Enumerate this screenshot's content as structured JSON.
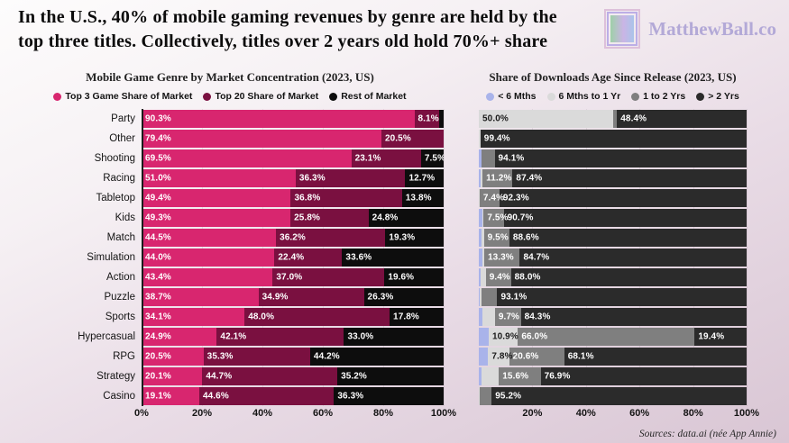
{
  "header": {
    "title_line1": "In the U.S., 40% of mobile gaming revenues by genre are held by the",
    "title_line2": "top three titles. Collectively, titles over 2 years old hold 70%+ share",
    "logo_text": "MatthewBall.co"
  },
  "footer": {
    "source": "Sources: data.ai (née App Annie)"
  },
  "chart_data": [
    {
      "type": "bar",
      "orientation": "horizontal",
      "stacked": true,
      "title": "Mobile Game Genre by Market Concentration (2023, US)",
      "legend_position": "top",
      "show_category_labels": true,
      "xlim": [
        0,
        100
      ],
      "x_ticks": [
        "0%",
        "20%",
        "40%",
        "60%",
        "80%",
        "100%"
      ],
      "categories": [
        "Party",
        "Other",
        "Shooting",
        "Racing",
        "Tabletop",
        "Kids",
        "Match",
        "Simulation",
        "Action",
        "Puzzle",
        "Sports",
        "Hypercasual",
        "RPG",
        "Strategy",
        "Casino"
      ],
      "series": [
        {
          "name": "Top 3 Game Share of Market",
          "color": "#d8266f",
          "label_color": "#ffffff",
          "values": [
            90.3,
            79.4,
            69.5,
            51.0,
            49.4,
            49.3,
            44.5,
            44.0,
            43.4,
            38.7,
            34.1,
            24.9,
            20.5,
            20.1,
            19.1
          ]
        },
        {
          "name": "Top 20 Share of Market",
          "color": "#7a1040",
          "label_color": "#ffffff",
          "values": [
            8.1,
            20.5,
            23.1,
            36.3,
            36.8,
            25.8,
            36.2,
            22.4,
            37.0,
            34.9,
            48.0,
            42.1,
            35.3,
            44.7,
            44.6
          ]
        },
        {
          "name": "Rest of Market",
          "color": "#0d0d0d",
          "label_color": "#ffffff",
          "values": [
            1.6,
            0.1,
            7.5,
            12.7,
            13.8,
            24.8,
            19.3,
            33.6,
            19.6,
            26.3,
            17.8,
            33.0,
            44.2,
            35.2,
            36.3
          ]
        }
      ]
    },
    {
      "type": "bar",
      "orientation": "horizontal",
      "stacked": true,
      "title": "Share of Downloads Age Since Release (2023, US)",
      "legend_position": "top",
      "show_category_labels": false,
      "xlim": [
        0,
        100
      ],
      "x_ticks": [
        "20%",
        "40%",
        "60%",
        "80%",
        "100%"
      ],
      "categories": [
        "Party",
        "Other",
        "Shooting",
        "Racing",
        "Tabletop",
        "Kids",
        "Match",
        "Simulation",
        "Action",
        "Puzzle",
        "Sports",
        "Hypercasual",
        "RPG",
        "Strategy",
        "Casino"
      ],
      "series": [
        {
          "name": "< 6 Mths",
          "color": "#a9b3ea",
          "label_color": "#1a1a1a",
          "values": [
            0,
            0,
            1.0,
            0.8,
            0,
            1.3,
            0.9,
            1.3,
            0.6,
            0.5,
            1.4,
            3.7,
            3.5,
            1.1,
            0
          ]
        },
        {
          "name": "6 Mths to 1 Yr",
          "color": "#dadada",
          "label_color": "#1a1a1a",
          "values": [
            50.0,
            0.6,
            0,
            0.6,
            0.3,
            0.5,
            1.0,
            0.7,
            2.0,
            0.6,
            4.6,
            10.9,
            7.8,
            6.4,
            0.3
          ]
        },
        {
          "name": "1 to 2 Yrs",
          "color": "#7f7f7f",
          "label_color": "#ffffff",
          "values": [
            1.6,
            0,
            4.9,
            11.2,
            7.4,
            7.5,
            9.5,
            13.3,
            9.4,
            5.8,
            9.7,
            66.0,
            20.6,
            15.6,
            4.5
          ]
        },
        {
          "name": "> 2 Yrs",
          "color": "#2b2b2b",
          "label_color": "#ffffff",
          "values": [
            48.4,
            99.4,
            94.1,
            87.4,
            92.3,
            90.7,
            88.6,
            84.7,
            88.0,
            93.1,
            84.3,
            19.4,
            68.1,
            76.9,
            95.2
          ]
        }
      ]
    }
  ]
}
